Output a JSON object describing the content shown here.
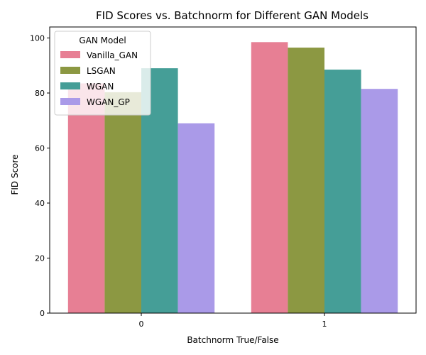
{
  "chart_data": {
    "type": "bar",
    "title": "FID Scores vs. Batchnorm for Different GAN Models",
    "xlabel": "Batchnorm True/False",
    "ylabel": "FID Score",
    "categories": [
      "0",
      "1"
    ],
    "ylim": [
      0,
      104
    ],
    "yticks": [
      0,
      20,
      40,
      60,
      80,
      100
    ],
    "grid": false,
    "legend": {
      "title": "GAN Model",
      "placement": "top-left"
    },
    "series": [
      {
        "name": "Vanilla_GAN",
        "color": "#e77f94",
        "values": [
          83.5,
          98.5
        ]
      },
      {
        "name": "LSGAN",
        "color": "#8c9842",
        "values": [
          80.3,
          96.5
        ]
      },
      {
        "name": "WGAN",
        "color": "#459e97",
        "values": [
          89.0,
          88.5
        ]
      },
      {
        "name": "WGAN_GP",
        "color": "#aa9ae8",
        "values": [
          69.0,
          81.5
        ]
      }
    ]
  }
}
